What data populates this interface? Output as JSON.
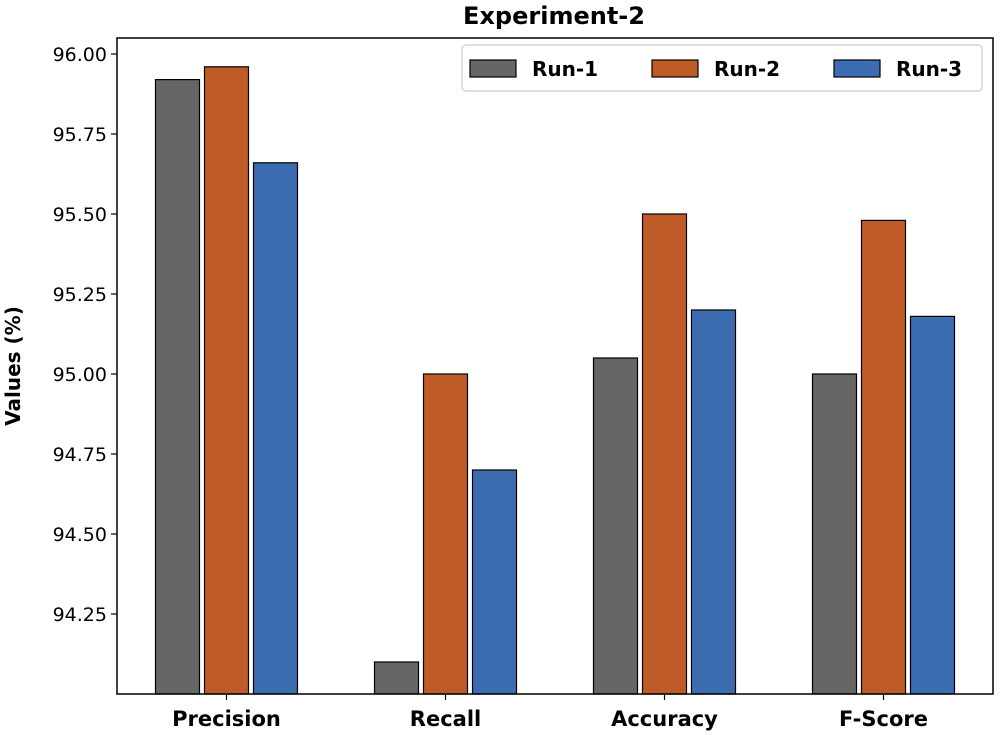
{
  "chart_data": {
    "type": "bar",
    "title": "Experiment-2",
    "xlabel": "",
    "ylabel": "Values (%)",
    "ylim": [
      94.0,
      96.05
    ],
    "yticks": [
      94.25,
      94.5,
      94.75,
      95.0,
      95.25,
      95.5,
      95.75,
      96.0
    ],
    "ytick_labels": [
      "94.25",
      "94.50",
      "94.75",
      "95.00",
      "95.25",
      "95.50",
      "95.75",
      "96.00"
    ],
    "categories": [
      "Precision",
      "Recall",
      "Accuracy",
      "F-Score"
    ],
    "series": [
      {
        "name": "Run-1",
        "color": "#666666",
        "values": [
          95.92,
          94.1,
          95.05,
          95.0
        ]
      },
      {
        "name": "Run-2",
        "color": "#bf5b27",
        "values": [
          95.96,
          95.0,
          95.5,
          95.48
        ]
      },
      {
        "name": "Run-3",
        "color": "#3b6db0",
        "values": [
          95.66,
          94.7,
          95.2,
          95.18
        ]
      }
    ],
    "legend_position": "top-right",
    "grid": false
  }
}
